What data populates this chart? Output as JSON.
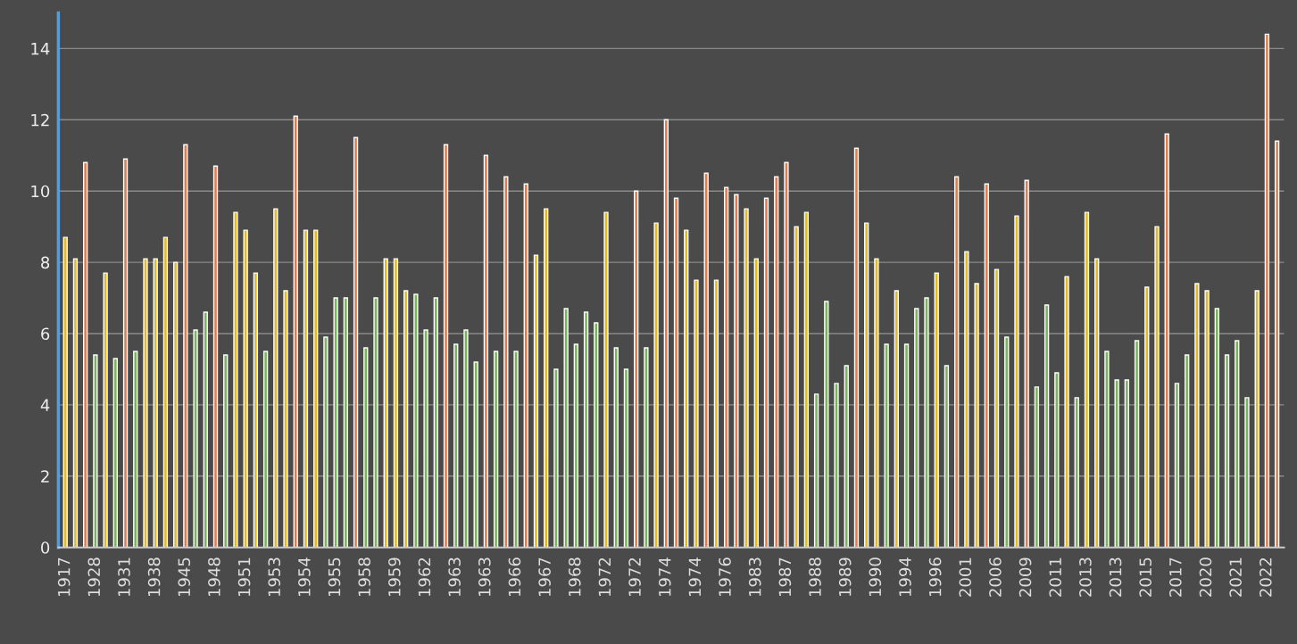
{
  "chart_data": {
    "type": "bar",
    "categories": [
      "1917",
      null,
      null,
      "1928",
      null,
      null,
      "1931",
      null,
      null,
      "1938",
      null,
      null,
      "1945",
      null,
      null,
      "1948",
      null,
      null,
      "1951",
      null,
      null,
      "1953",
      null,
      null,
      "1954",
      null,
      null,
      "1955",
      null,
      null,
      "1958",
      null,
      null,
      "1959",
      null,
      null,
      "1962",
      null,
      null,
      "1963",
      null,
      null,
      "1963",
      null,
      null,
      "1966",
      null,
      null,
      "1967",
      null,
      null,
      "1968",
      null,
      null,
      "1972",
      null,
      null,
      "1972",
      null,
      null,
      "1974",
      null,
      null,
      "1974",
      null,
      null,
      "1976",
      null,
      null,
      "1983",
      null,
      null,
      "1987",
      null,
      null,
      "1988",
      null,
      null,
      "1989",
      null,
      null,
      "1990",
      null,
      null,
      "1994",
      null,
      null,
      "1996",
      null,
      null,
      "2001",
      null,
      null,
      "2006",
      null,
      null,
      "2009",
      null,
      null,
      "2011",
      null,
      null,
      "2013",
      null,
      null,
      "2013",
      null,
      null,
      "2015",
      null,
      null,
      "2017",
      null,
      null,
      "2020",
      null,
      null,
      "2021",
      null,
      null,
      "2022",
      null
    ],
    "values": [
      8.7,
      8.1,
      10.8,
      5.4,
      7.7,
      5.3,
      10.9,
      5.5,
      8.1,
      8.1,
      8.7,
      8.0,
      11.3,
      6.1,
      6.6,
      10.7,
      5.4,
      9.4,
      8.9,
      7.7,
      5.5,
      9.5,
      7.2,
      12.1,
      8.9,
      8.9,
      5.9,
      7.0,
      7.0,
      11.5,
      5.6,
      7.0,
      8.1,
      8.1,
      7.2,
      7.1,
      6.1,
      7.0,
      11.3,
      5.7,
      6.1,
      5.2,
      11.0,
      5.5,
      10.4,
      5.5,
      10.2,
      8.2,
      9.5,
      5.0,
      6.7,
      5.7,
      6.6,
      6.3,
      9.4,
      5.6,
      5.0,
      10.0,
      5.6,
      9.1,
      12.0,
      9.8,
      8.9,
      7.5,
      10.5,
      7.5,
      10.1,
      9.9,
      9.5,
      8.1,
      9.8,
      10.4,
      10.8,
      9.0,
      9.4,
      4.3,
      6.9,
      4.6,
      5.1,
      11.2,
      9.1,
      8.1,
      5.7,
      7.2,
      5.7,
      6.7,
      7.0,
      7.7,
      5.1,
      10.4,
      8.3,
      7.4,
      10.2,
      7.8,
      5.9,
      9.3,
      10.3,
      4.5,
      6.8,
      4.9,
      7.6,
      4.2,
      9.4,
      8.1,
      5.5,
      4.7,
      4.7,
      5.8,
      7.3,
      9.0,
      11.6,
      4.6,
      5.4,
      7.4,
      7.2,
      6.7,
      5.4,
      5.8,
      4.2,
      7.2,
      14.4,
      11.4
    ],
    "colors": [
      "#e3b91f",
      "#e3b91f",
      "#e07b4f",
      "#79b35a",
      "#e3b91f",
      "#79b35a",
      "#e07b4f",
      "#79b35a",
      "#e3b91f",
      "#e3b91f",
      "#e3b91f",
      "#e3b91f",
      "#e07b4f",
      "#79b35a",
      "#79b35a",
      "#e07b4f",
      "#79b35a",
      "#e3b91f",
      "#e3b91f",
      "#e3b91f",
      "#79b35a",
      "#e3b91f",
      "#e3b91f",
      "#e07b4f",
      "#e3b91f",
      "#e3b91f",
      "#79b35a",
      "#79b35a",
      "#79b35a",
      "#e07b4f",
      "#79b35a",
      "#79b35a",
      "#e3b91f",
      "#e3b91f",
      "#e3b91f",
      "#79b35a",
      "#79b35a",
      "#79b35a",
      "#e07b4f",
      "#79b35a",
      "#79b35a",
      "#79b35a",
      "#e07b4f",
      "#79b35a",
      "#e07b4f",
      "#79b35a",
      "#e07b4f",
      "#e3b91f",
      "#e3b91f",
      "#79b35a",
      "#79b35a",
      "#79b35a",
      "#79b35a",
      "#79b35a",
      "#e3b91f",
      "#79b35a",
      "#79b35a",
      "#e07b4f",
      "#79b35a",
      "#e3b91f",
      "#e07b4f",
      "#e07b4f",
      "#e3b91f",
      "#e3b91f",
      "#e07b4f",
      "#e3b91f",
      "#e07b4f",
      "#e07b4f",
      "#e3b91f",
      "#e3b91f",
      "#e07b4f",
      "#e07b4f",
      "#e07b4f",
      "#e3b91f",
      "#e3b91f",
      "#79b35a",
      "#79b35a",
      "#79b35a",
      "#79b35a",
      "#e07b4f",
      "#e3b91f",
      "#e3b91f",
      "#79b35a",
      "#e3b91f",
      "#79b35a",
      "#79b35a",
      "#79b35a",
      "#e3b91f",
      "#79b35a",
      "#e07b4f",
      "#e3b91f",
      "#e3b91f",
      "#e07b4f",
      "#e3b91f",
      "#79b35a",
      "#e3b91f",
      "#e07b4f",
      "#79b35a",
      "#79b35a",
      "#79b35a",
      "#e3b91f",
      "#79b35a",
      "#e3b91f",
      "#e3b91f",
      "#79b35a",
      "#79b35a",
      "#79b35a",
      "#79b35a",
      "#e3b91f",
      "#e3b91f",
      "#e07b4f",
      "#79b35a",
      "#79b35a",
      "#e3b91f",
      "#e3b91f",
      "#79b35a",
      "#79b35a",
      "#79b35a",
      "#79b35a",
      "#e3b91f",
      "#e07b4f",
      "#e07b4f"
    ],
    "ylim": [
      0,
      15
    ],
    "yticks": [
      0,
      2,
      4,
      6,
      8,
      10,
      12,
      14
    ],
    "grid": "y"
  }
}
